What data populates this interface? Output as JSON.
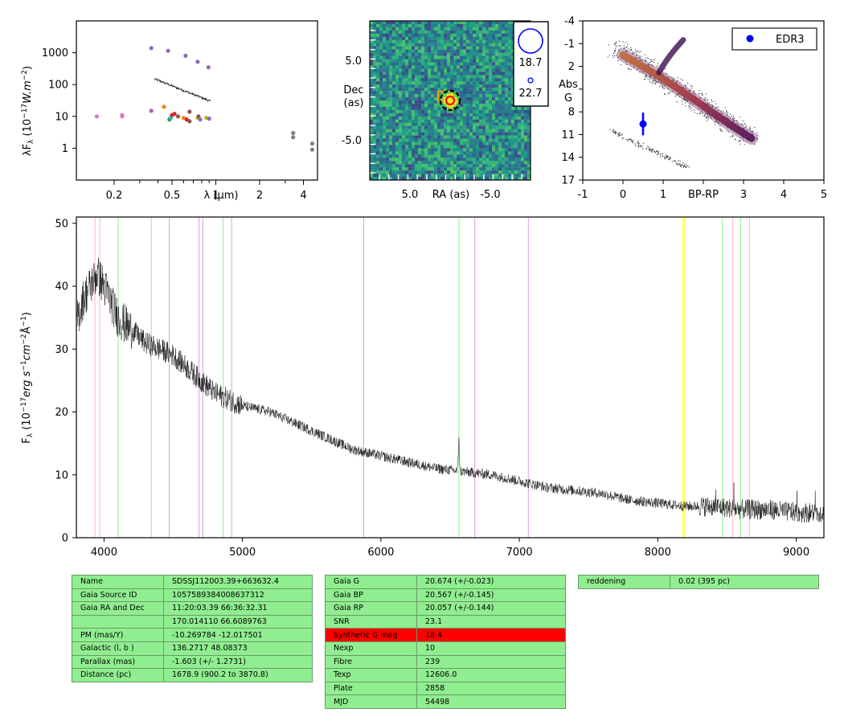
{
  "sed": {
    "ylabel": "λF",
    "ylabel_sub": "λ",
    "ylabel_units": " (10",
    "ylabel_exp": "−17",
    "ylabel_tail": "W.m",
    "ylabel_exp2": "−2",
    "ylabel_close": ")",
    "xlabel": "λ (μm)",
    "xticks": [
      "0.2",
      "0.5",
      "1",
      "2",
      "4"
    ],
    "yticks": [
      "1",
      "10",
      "100",
      "1000"
    ]
  },
  "cutout": {
    "xlabel": "RA (as)",
    "ylabel_line1": "Dec",
    "ylabel_line2": "(as)",
    "xticks": [
      "5.0",
      "-5.0"
    ],
    "yticks": [
      "5.0",
      "-5.0"
    ],
    "legend": [
      "18.7",
      "22.7"
    ]
  },
  "hrd": {
    "xlabel": "BP-RP",
    "ylabel_line1": "Abs",
    "ylabel_line2": "G",
    "xticks": [
      "-1",
      "0",
      "1",
      "3",
      "4",
      "5"
    ],
    "yticks": [
      "-4",
      "-1",
      "2",
      "8",
      "11",
      "14",
      "17"
    ],
    "legend": "EDR3"
  },
  "spectrum": {
    "ylabel_main": "F",
    "ylabel_sub": "λ",
    "ylabel_units": " (10",
    "ylabel_exp": "−17",
    "ylabel_tail": "erg s",
    "ylabel_exp2": "−1",
    "ylabel_tail2": "cm",
    "ylabel_exp3": "−2",
    "ylabel_tail3": "Å",
    "ylabel_exp4": "−1",
    "ylabel_close": ")",
    "xticks": [
      "4000",
      "5000",
      "6000",
      "7000",
      "8000",
      "9000"
    ],
    "yticks": [
      "0",
      "10",
      "20",
      "30",
      "40",
      "50"
    ]
  },
  "chart_data": [
    {
      "type": "scatter",
      "name": "SED",
      "xscale": "log",
      "yscale": "log",
      "xlim": [
        0.11,
        5.0
      ],
      "ylim": [
        0.1,
        10000
      ],
      "points": [
        {
          "x": 0.152,
          "y": 10,
          "color": "#e377c2"
        },
        {
          "x": 0.227,
          "y": 11,
          "color": "#e377c2"
        },
        {
          "x": 0.227,
          "y": 10,
          "color": "#e377c2"
        },
        {
          "x": 0.36,
          "y": 1400,
          "color": "#9467bd"
        },
        {
          "x": 0.47,
          "y": 1150,
          "color": "#9467bd"
        },
        {
          "x": 0.62,
          "y": 800,
          "color": "#9467bd"
        },
        {
          "x": 0.75,
          "y": 520,
          "color": "#9467bd"
        },
        {
          "x": 0.89,
          "y": 350,
          "color": "#9467bd"
        },
        {
          "x": 0.36,
          "y": 15,
          "color": "#9467bd"
        },
        {
          "x": 0.44,
          "y": 20,
          "color": "#ff7f0e"
        },
        {
          "x": 0.48,
          "y": 8,
          "color": "#2ca02c"
        },
        {
          "x": 0.49,
          "y": 9,
          "color": "#17becf"
        },
        {
          "x": 0.5,
          "y": 11,
          "color": "#d62728"
        },
        {
          "x": 0.52,
          "y": 12,
          "color": "#d62728"
        },
        {
          "x": 0.55,
          "y": 10,
          "color": "#8c564b"
        },
        {
          "x": 0.6,
          "y": 9,
          "color": "#ff7f0e"
        },
        {
          "x": 0.63,
          "y": 8,
          "color": "#d62728"
        },
        {
          "x": 0.66,
          "y": 7,
          "color": "#8c564b"
        },
        {
          "x": 0.66,
          "y": 14,
          "color": "#8c564b"
        },
        {
          "x": 0.75,
          "y": 9,
          "color": "#bcbd22"
        },
        {
          "x": 0.76,
          "y": 10,
          "color": "#8c564b"
        },
        {
          "x": 0.78,
          "y": 8,
          "color": "#9467bd"
        },
        {
          "x": 0.86,
          "y": 9,
          "color": "#bcbd22"
        },
        {
          "x": 0.9,
          "y": 8.5,
          "color": "#9467bd"
        },
        {
          "x": 3.4,
          "y": 3,
          "color": "#7f7f7f"
        },
        {
          "x": 3.4,
          "y": 2.2,
          "color": "#7f7f7f"
        },
        {
          "x": 4.6,
          "y": 1.4,
          "color": "#7f7f7f"
        },
        {
          "x": 4.6,
          "y": 0.9,
          "color": "#7f7f7f"
        }
      ],
      "spectrum_line": {
        "x_range": [
          0.38,
          0.92
        ],
        "y": [
          150,
          30
        ]
      }
    },
    {
      "type": "heatmap",
      "name": "cutout",
      "xlim": [
        10,
        -10
      ],
      "ylim": [
        -10,
        10
      ],
      "source": {
        "x": 0,
        "y": 0
      }
    },
    {
      "type": "scatter",
      "name": "HRD",
      "xlim": [
        -1,
        5
      ],
      "ylim": [
        17,
        -4
      ],
      "series": [
        {
          "name": "EDR3",
          "x": [
            0.5
          ],
          "y": [
            9.6
          ],
          "yerr": [
            1.5
          ],
          "color": "#0000ff"
        }
      ]
    },
    {
      "type": "line",
      "name": "spectrum",
      "xlim": [
        3800,
        9200
      ],
      "ylim": [
        0,
        51
      ],
      "x_points": [
        3800,
        3850,
        3900,
        3950,
        4000,
        4100,
        4200,
        4300,
        4400,
        4500,
        4600,
        4700,
        4800,
        4900,
        5000,
        5200,
        5400,
        5600,
        5800,
        6000,
        6200,
        6400,
        6600,
        6800,
        7000,
        7200,
        7400,
        7600,
        7800,
        8000,
        8200,
        8400,
        8600,
        8800,
        9000,
        9200
      ],
      "y_points": [
        34,
        38,
        40,
        42,
        40,
        35,
        33,
        31,
        30,
        29,
        27,
        25,
        23,
        22,
        21,
        20,
        18,
        16,
        14,
        13,
        12,
        11,
        10.5,
        10,
        9,
        8,
        7.5,
        7,
        6,
        5.5,
        5,
        5,
        4.5,
        4.5,
        4,
        4
      ],
      "emission_line": {
        "x": 6563,
        "peak": 16
      },
      "vlines": [
        {
          "x": 3934,
          "color": "#ffb6b6"
        },
        {
          "x": 3969,
          "color": "#ffb6b6"
        },
        {
          "x": 4102,
          "color": "#90ee90"
        },
        {
          "x": 4341,
          "color": "#90ee90"
        },
        {
          "x": 4471,
          "color": "#dda0dd"
        },
        {
          "x": 4686,
          "color": "#dda0dd"
        },
        {
          "x": 4713,
          "color": "#dda0dd"
        },
        {
          "x": 4861,
          "color": "#90ee90"
        },
        {
          "x": 4922,
          "color": "#dda0dd"
        },
        {
          "x": 5876,
          "color": "#dda0dd"
        },
        {
          "x": 6563,
          "color": "#90ee90"
        },
        {
          "x": 6678,
          "color": "#dda0dd"
        },
        {
          "x": 7065,
          "color": "#dda0dd"
        },
        {
          "x": 8183,
          "color": "#ffff00"
        },
        {
          "x": 8195,
          "color": "#ffff00"
        },
        {
          "x": 8467,
          "color": "#90ee90"
        },
        {
          "x": 8542,
          "color": "#ffb6b6"
        },
        {
          "x": 8598,
          "color": "#90ee90"
        },
        {
          "x": 8662,
          "color": "#ffb6b6"
        }
      ]
    }
  ],
  "tables": {
    "left": [
      [
        "Name",
        "SDSSJ112003.39+663632.4"
      ],
      [
        "Gaia Source ID",
        "1057589384008637312"
      ],
      [
        "Gaia RA and Dec",
        "11:20:03.39    66:36:32.31"
      ],
      [
        "",
        "170.014110    66.6089763"
      ],
      [
        "PM (mas/Y)",
        "-10.269784    -12.017501"
      ],
      [
        "Galactic (l, b )",
        "136.2717    48.08373"
      ],
      [
        "Parallax (mas)",
        "-1.603 (+/- 1.2731)"
      ],
      [
        "Distance (pc)",
        "1678.9 (900.2 to 3870.8)"
      ]
    ],
    "middle": [
      [
        "Gaia G",
        "20.674 (+/-0.023)"
      ],
      [
        "Gaia BP",
        "20.567 (+/-0.145)"
      ],
      [
        "Gaia RP",
        "20.057 (+/-0.144)"
      ],
      [
        "SNR",
        "23.1"
      ],
      [
        "Synthetic G mag",
        "18.4"
      ],
      [
        "Nexp",
        "10"
      ],
      [
        "Fibre",
        "239"
      ],
      [
        "Texp",
        "12606.0"
      ],
      [
        "Plate",
        "2858"
      ],
      [
        "MJD",
        "54498"
      ]
    ],
    "right": [
      [
        "reddening",
        "0.02 (395 pc)"
      ]
    ]
  },
  "colors": {
    "table_bg": "#90ee90",
    "highlight": "#ff0000",
    "edr3": "#0000ff"
  }
}
